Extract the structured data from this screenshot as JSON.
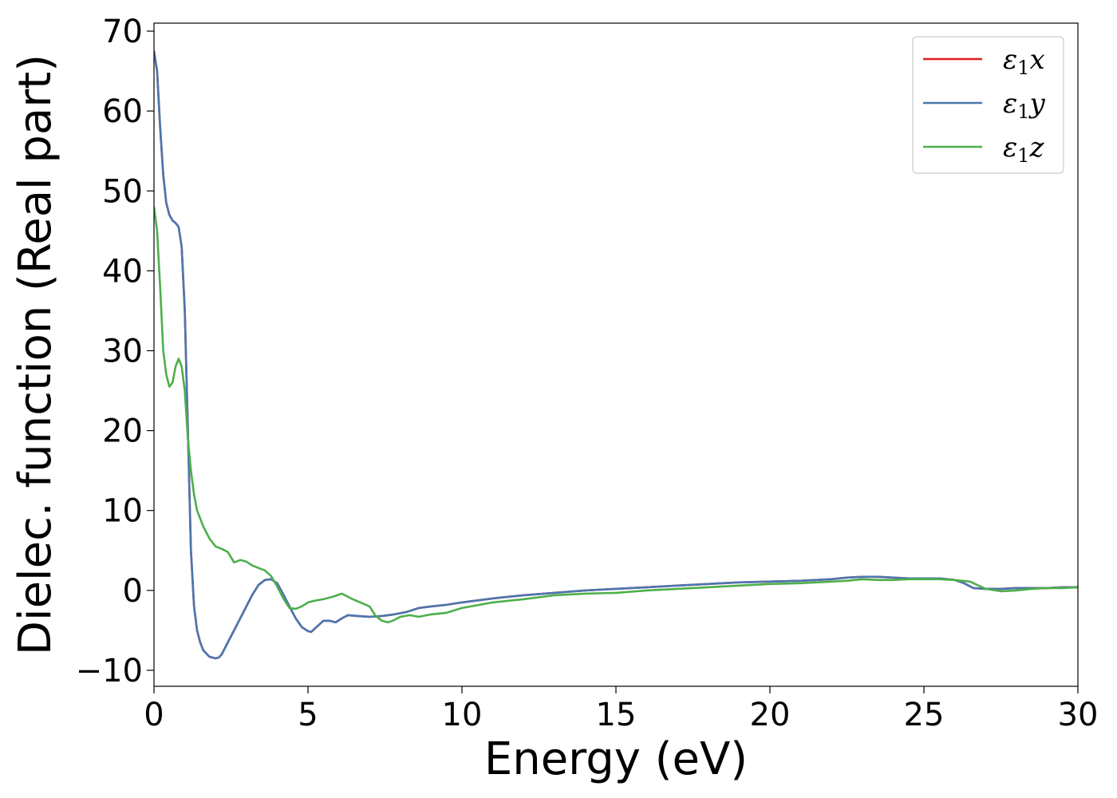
{
  "chart_data": {
    "type": "line",
    "title": "",
    "xlabel": "Energy (eV)",
    "ylabel": "Dielec. function (Real part)",
    "xlim": [
      0,
      30
    ],
    "ylim": [
      -12,
      71
    ],
    "xticks": [
      0,
      5,
      10,
      15,
      20,
      25,
      30
    ],
    "xtick_labels": [
      "0",
      "5",
      "10",
      "15",
      "20",
      "25",
      "30"
    ],
    "yticks": [
      -10,
      0,
      10,
      20,
      30,
      40,
      50,
      60,
      70
    ],
    "ytick_labels": [
      "−10",
      "0",
      "10",
      "20",
      "30",
      "40",
      "50",
      "60",
      "70"
    ],
    "grid": false,
    "legend_position": "top-right",
    "series": [
      {
        "name": "ε1x",
        "legend_main": "ε",
        "legend_sub": "1",
        "legend_var": "x",
        "color": "#e41a1c",
        "x": [
          0,
          0.1,
          0.2,
          0.3,
          0.4,
          0.5,
          0.6,
          0.7,
          0.8,
          0.9,
          1.0,
          1.1,
          1.2,
          1.3,
          1.4,
          1.5,
          1.6,
          1.8,
          2.0,
          2.1,
          2.2,
          2.4,
          2.6,
          2.8,
          3.0,
          3.2,
          3.4,
          3.6,
          3.8,
          4.0,
          4.2,
          4.4,
          4.6,
          4.8,
          5.0,
          5.1,
          5.3,
          5.5,
          5.7,
          5.9,
          6.1,
          6.3,
          6.6,
          7.0,
          7.4,
          7.8,
          8.2,
          8.6,
          9.0,
          9.5,
          10,
          11,
          12,
          13,
          14,
          15,
          16,
          17,
          18,
          19,
          20,
          21,
          22,
          22.5,
          23,
          23.5,
          24,
          24.5,
          25,
          25.5,
          26,
          26.3,
          26.6,
          27,
          27.5,
          28,
          28.5,
          29,
          29.5,
          30
        ],
        "y": [
          67.5,
          65,
          58,
          52,
          48.5,
          47,
          46.3,
          46,
          45.5,
          43,
          35,
          20,
          5,
          -2,
          -5,
          -6.5,
          -7.5,
          -8.3,
          -8.5,
          -8.4,
          -8,
          -6.5,
          -5,
          -3.5,
          -2,
          -0.5,
          0.7,
          1.3,
          1.4,
          0.9,
          -0.5,
          -2,
          -3.5,
          -4.6,
          -5.1,
          -5.2,
          -4.5,
          -3.8,
          -3.8,
          -4,
          -3.5,
          -3.1,
          -3.2,
          -3.3,
          -3.2,
          -3.0,
          -2.7,
          -2.2,
          -2.0,
          -1.8,
          -1.5,
          -1.0,
          -0.6,
          -0.3,
          0.0,
          0.2,
          0.4,
          0.6,
          0.8,
          1.0,
          1.1,
          1.2,
          1.4,
          1.6,
          1.7,
          1.7,
          1.6,
          1.5,
          1.5,
          1.5,
          1.3,
          0.9,
          0.3,
          0.2,
          0.2,
          0.3,
          0.3,
          0.3,
          0.4,
          0.4
        ]
      },
      {
        "name": "ε1y",
        "legend_main": "ε",
        "legend_sub": "1",
        "legend_var": "y",
        "color": "#4a77b0",
        "x": [
          0,
          0.1,
          0.2,
          0.3,
          0.4,
          0.5,
          0.6,
          0.7,
          0.8,
          0.9,
          1.0,
          1.1,
          1.2,
          1.3,
          1.4,
          1.5,
          1.6,
          1.8,
          2.0,
          2.1,
          2.2,
          2.4,
          2.6,
          2.8,
          3.0,
          3.2,
          3.4,
          3.6,
          3.8,
          4.0,
          4.2,
          4.4,
          4.6,
          4.8,
          5.0,
          5.1,
          5.3,
          5.5,
          5.7,
          5.9,
          6.1,
          6.3,
          6.6,
          7.0,
          7.4,
          7.8,
          8.2,
          8.6,
          9.0,
          9.5,
          10,
          11,
          12,
          13,
          14,
          15,
          16,
          17,
          18,
          19,
          20,
          21,
          22,
          22.5,
          23,
          23.5,
          24,
          24.5,
          25,
          25.5,
          26,
          26.3,
          26.6,
          27,
          27.5,
          28,
          28.5,
          29,
          29.5,
          30
        ],
        "y": [
          67.5,
          65,
          58,
          52,
          48.5,
          47,
          46.3,
          46,
          45.5,
          43,
          35,
          20,
          5,
          -2,
          -5,
          -6.5,
          -7.5,
          -8.3,
          -8.5,
          -8.4,
          -8,
          -6.5,
          -5,
          -3.5,
          -2,
          -0.5,
          0.7,
          1.3,
          1.4,
          0.9,
          -0.5,
          -2,
          -3.5,
          -4.6,
          -5.1,
          -5.2,
          -4.5,
          -3.8,
          -3.8,
          -4,
          -3.5,
          -3.1,
          -3.2,
          -3.3,
          -3.2,
          -3.0,
          -2.7,
          -2.2,
          -2.0,
          -1.8,
          -1.5,
          -1.0,
          -0.6,
          -0.3,
          0.0,
          0.2,
          0.4,
          0.6,
          0.8,
          1.0,
          1.1,
          1.2,
          1.4,
          1.6,
          1.7,
          1.7,
          1.6,
          1.5,
          1.5,
          1.5,
          1.3,
          0.9,
          0.3,
          0.2,
          0.2,
          0.3,
          0.3,
          0.3,
          0.4,
          0.4
        ]
      },
      {
        "name": "ε1z",
        "legend_main": "ε",
        "legend_sub": "1",
        "legend_var": "z",
        "color": "#4daf4a",
        "x": [
          0,
          0.1,
          0.2,
          0.3,
          0.4,
          0.5,
          0.6,
          0.7,
          0.8,
          0.9,
          1.0,
          1.1,
          1.2,
          1.3,
          1.4,
          1.5,
          1.6,
          1.8,
          2.0,
          2.2,
          2.4,
          2.6,
          2.8,
          3.0,
          3.2,
          3.4,
          3.6,
          3.8,
          4.0,
          4.2,
          4.4,
          4.6,
          4.8,
          5.0,
          5.2,
          5.5,
          5.8,
          6.1,
          6.4,
          6.7,
          7.0,
          7.2,
          7.4,
          7.6,
          7.8,
          8.0,
          8.3,
          8.6,
          9.0,
          9.5,
          10,
          11,
          12,
          13,
          14,
          15,
          16,
          17,
          18,
          19,
          20,
          21,
          22,
          22.5,
          23,
          23.5,
          24,
          24.5,
          25,
          25.5,
          26,
          26.5,
          27,
          27.5,
          28,
          28.5,
          29,
          29.5,
          30
        ],
        "y": [
          48,
          45,
          38,
          30,
          27,
          25.5,
          26,
          28,
          29,
          28,
          25,
          19,
          15,
          12,
          10,
          9,
          8,
          6.5,
          5.5,
          5.2,
          4.8,
          3.5,
          3.8,
          3.6,
          3.1,
          2.8,
          2.5,
          1.8,
          0.5,
          -1.0,
          -2.2,
          -2.3,
          -2.0,
          -1.5,
          -1.3,
          -1.1,
          -0.8,
          -0.4,
          -1.0,
          -1.5,
          -2.0,
          -3.2,
          -3.8,
          -4.0,
          -3.7,
          -3.3,
          -3.1,
          -3.3,
          -3.0,
          -2.8,
          -2.2,
          -1.5,
          -1.1,
          -0.6,
          -0.4,
          -0.3,
          0.0,
          0.2,
          0.4,
          0.6,
          0.8,
          0.9,
          1.1,
          1.2,
          1.4,
          1.3,
          1.3,
          1.4,
          1.4,
          1.4,
          1.3,
          1.1,
          0.2,
          -0.1,
          0.0,
          0.2,
          0.3,
          0.3,
          0.4
        ]
      }
    ]
  }
}
